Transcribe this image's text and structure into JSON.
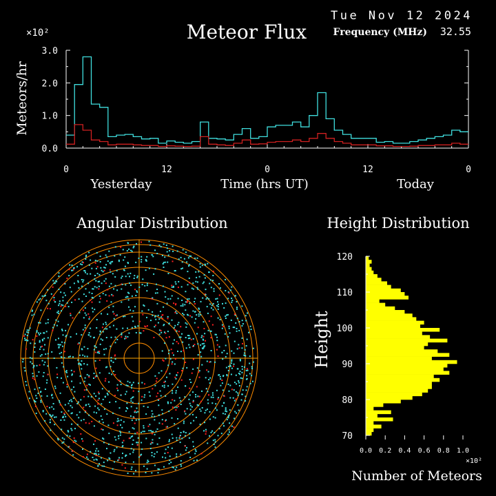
{
  "header": {
    "date": "Tue Nov 12 2024",
    "frequency_label": "Frequency (MHz)",
    "frequency_value": "32.55"
  },
  "colors": {
    "background": "#000000",
    "axis": "#ffffff",
    "total_line": "#40e0e0",
    "underdense_line": "#d02020",
    "angular_grid": "#ff8c00",
    "angular_axes": "#ffa500",
    "points_cyan": "#40e0e0",
    "points_red": "#ff2020",
    "height_bars": "#ffff00"
  },
  "chart_data": [
    {
      "type": "line",
      "title": "Meteor Flux",
      "ylabel": "Meteors/hr",
      "xlabel": "Time (hrs UT)",
      "y_multiplier": "×10²",
      "ylim": [
        0,
        3.0
      ],
      "yticks": [
        "0.0",
        "1.0",
        "2.0",
        "3.0"
      ],
      "xticks": [
        "0",
        "12",
        "0",
        "12",
        "0"
      ],
      "xlabels": {
        "left": "Yesterday",
        "center": "Time (hrs UT)",
        "right": "Today"
      },
      "xlim": [
        0,
        48
      ],
      "step": true,
      "series": [
        {
          "color": "#40e0e0",
          "values": [
            0.4,
            1.95,
            2.8,
            1.35,
            1.25,
            0.35,
            0.4,
            0.42,
            0.35,
            0.28,
            0.3,
            0.15,
            0.22,
            0.18,
            0.15,
            0.2,
            0.8,
            0.3,
            0.28,
            0.25,
            0.42,
            0.6,
            0.3,
            0.35,
            0.65,
            0.7,
            0.7,
            0.8,
            0.65,
            1.0,
            1.7,
            0.9,
            0.55,
            0.42,
            0.3,
            0.3,
            0.3,
            0.18,
            0.2,
            0.15,
            0.15,
            0.2,
            0.25,
            0.3,
            0.35,
            0.4,
            0.55,
            0.5
          ]
        },
        {
          "color": "#d02020",
          "values": [
            0.12,
            0.72,
            0.55,
            0.25,
            0.2,
            0.1,
            0.12,
            0.12,
            0.1,
            0.08,
            0.08,
            0.05,
            0.07,
            0.06,
            0.05,
            0.06,
            0.35,
            0.12,
            0.1,
            0.08,
            0.15,
            0.25,
            0.12,
            0.13,
            0.18,
            0.2,
            0.2,
            0.25,
            0.2,
            0.3,
            0.45,
            0.3,
            0.2,
            0.15,
            0.1,
            0.1,
            0.1,
            0.07,
            0.07,
            0.05,
            0.05,
            0.06,
            0.08,
            0.08,
            0.1,
            0.1,
            0.15,
            0.12
          ]
        }
      ]
    },
    {
      "type": "scatter",
      "title": "Angular Distribution",
      "rings": 8,
      "point_count": 1600,
      "series": [
        {
          "color": "#40e0e0",
          "fraction": 0.75
        },
        {
          "color": "#ff2020",
          "fraction": 0.25
        }
      ]
    },
    {
      "type": "bar",
      "orientation": "horizontal",
      "title": "Height Distribution",
      "ylabel": "Height",
      "xlabel": "Number of Meteors",
      "x_multiplier": "×10²",
      "ylim": [
        70,
        120
      ],
      "yticks": [
        "70",
        "80",
        "90",
        "100",
        "110",
        "120"
      ],
      "xlim": [
        0,
        1.0
      ],
      "xticks": [
        "0.0",
        "0.2",
        "0.4",
        "0.6",
        "0.8",
        "1.0"
      ],
      "bin_height_km": 1,
      "bins_from_bottom": [
        0.06,
        0.08,
        0.16,
        0.08,
        0.28,
        0.12,
        0.26,
        0.08,
        0.18,
        0.36,
        0.48,
        0.58,
        0.64,
        0.68,
        0.68,
        0.76,
        0.7,
        0.86,
        0.8,
        0.84,
        0.94,
        0.68,
        0.86,
        0.74,
        0.6,
        0.64,
        0.84,
        0.66,
        0.58,
        0.76,
        0.56,
        0.6,
        0.52,
        0.48,
        0.4,
        0.3,
        0.2,
        0.14,
        0.44,
        0.4,
        0.36,
        0.26,
        0.22,
        0.16,
        0.12,
        0.08,
        0.06,
        0.04,
        0.06,
        0.03
      ]
    }
  ]
}
